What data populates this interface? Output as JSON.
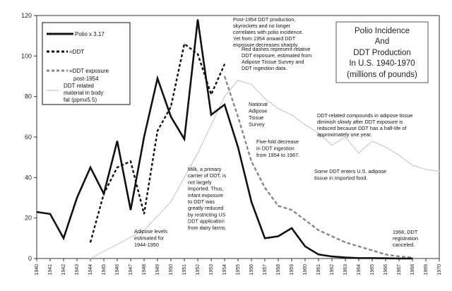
{
  "chart_data": {
    "type": "line",
    "title": [
      "Polio Incidence",
      "And",
      "DDT Production",
      "In U.S. 1940-1970",
      "(millions of pounds)"
    ],
    "xlabel": "",
    "ylabel": "",
    "ylim": [
      0,
      120
    ],
    "yticks": [
      0,
      20,
      40,
      60,
      80,
      100,
      120
    ],
    "xlim": [
      1940,
      1970
    ],
    "categories": [
      "1940",
      "1941",
      "1942",
      "1943",
      "1944",
      "1945",
      "1946",
      "1947",
      "1948",
      "1949",
      "1950",
      "1951",
      "1952",
      "1953",
      "1954",
      "1955",
      "1956",
      "1957",
      "1958",
      "1959",
      "1960",
      "1961",
      "1962",
      "1963",
      "1964",
      "1965",
      "1966",
      "1967",
      "1968",
      "1969",
      "1970"
    ],
    "series": [
      {
        "name": "Polio x 3.17",
        "style": "solid",
        "color": "#111111",
        "x": [
          1940,
          1941,
          1942,
          1943,
          1944,
          1945,
          1946,
          1947,
          1948,
          1949,
          1950,
          1951,
          1952,
          1953,
          1954,
          1955,
          1956,
          1957,
          1958,
          1959,
          1960,
          1961,
          1962,
          1963,
          1964,
          1965,
          1966,
          1967,
          1968
        ],
        "values": [
          23,
          22,
          10,
          30,
          45,
          32,
          58,
          24,
          60,
          89,
          70,
          59,
          118,
          71,
          76,
          55,
          28,
          10,
          11,
          15,
          6,
          2,
          1,
          0.5,
          0.2,
          0.2,
          0.1,
          0,
          0
        ]
      },
      {
        "name": "=DDT",
        "style": "dotted",
        "color": "#111111",
        "x": [
          1944,
          1945,
          1946,
          1947,
          1948,
          1949,
          1950,
          1951,
          1952,
          1953,
          1954
        ],
        "values": [
          8,
          32,
          45,
          48,
          22,
          63,
          75,
          106,
          101,
          81,
          96
        ]
      },
      {
        "name": "=DDT exposure post-1954",
        "style": "dashed",
        "color": "#888888",
        "x": [
          1954,
          1955,
          1956,
          1957,
          1958,
          1959,
          1960,
          1961,
          1962,
          1963,
          1964,
          1965,
          1966,
          1967,
          1968
        ],
        "values": [
          90,
          70,
          48,
          35,
          26,
          24,
          19,
          14,
          11,
          8,
          6,
          4,
          2,
          1,
          0.5
        ]
      },
      {
        "name": "DDT related material in body fat (ppmx5.5)",
        "style": "thin",
        "color": "#bbbbbb",
        "x": [
          1944,
          1946,
          1948,
          1950,
          1952,
          1954,
          1955,
          1956,
          1957,
          1958,
          1959,
          1960,
          1961,
          1962,
          1963,
          1964,
          1965,
          1966,
          1967,
          1968,
          1969,
          1970
        ],
        "values": [
          0,
          7,
          14,
          28,
          52,
          80,
          88,
          86,
          79,
          74,
          71,
          66,
          62,
          56,
          60,
          52,
          58,
          55,
          51,
          46,
          44,
          43
        ]
      }
    ],
    "legend": {
      "position": "top-left",
      "entries": [
        "Polio x 3.17",
        "=DDT",
        "=DDT exposure post-1954",
        "DDT related material in body fat (ppmx5.5)"
      ]
    },
    "annotations": [
      {
        "id": "post1954",
        "lines": [
          "Post-1954 DDT production,",
          "skyrockets and no longer",
          "correlates with polio incidence.",
          "Yet from 1954 onward DDT",
          "exposure decreases sharply."
        ]
      },
      {
        "id": "reddashed",
        "lines": [
          "Red dashes represent relative",
          "DDT exposure, estimated from",
          "Adipose Tissue Survey and",
          "DDT ingestion data."
        ]
      },
      {
        "id": "natsurvey",
        "lines": [
          "National",
          "Adipose",
          "Tissue",
          "Survey"
        ]
      },
      {
        "id": "compounds",
        "lines": [
          "DDT-related compounds in adipose tissue",
          "diminish slowly after DDT exposure is",
          "reduced because DDT has a half-life of",
          "approximately one year."
        ]
      },
      {
        "id": "fivefold",
        "lines": [
          "Five-fold decrease",
          "in DDT ingestion",
          "from 1954 to 1967."
        ]
      },
      {
        "id": "imported",
        "lines": [
          "Some DDT enters U.S. adipose",
          "tissue in imported food."
        ]
      },
      {
        "id": "milk",
        "lines": [
          "Milk, a primary",
          "carrier of DDT, is",
          "not largely",
          "imported. Thus,",
          "infant exposure",
          "to DDT was",
          "greatly reduced",
          "by restricting US",
          "DDT application",
          "from dairy farms."
        ]
      },
      {
        "id": "adipose",
        "lines": [
          "Adipose levels",
          "estimated for",
          "1944-1950"
        ]
      },
      {
        "id": "registration",
        "lines": [
          "1968, DDT",
          "registration",
          "canceled."
        ]
      }
    ]
  }
}
